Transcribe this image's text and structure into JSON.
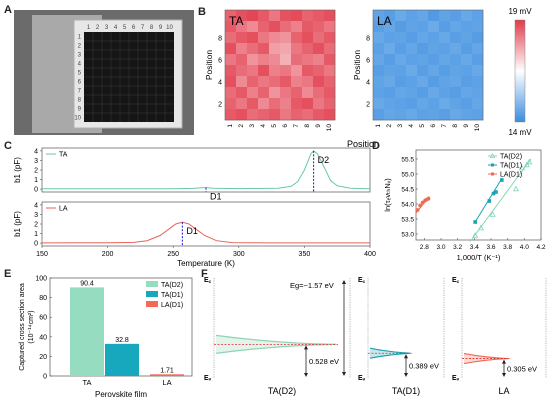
{
  "panels": {
    "A": {
      "label": "A",
      "grid_numbers": [
        "1",
        "2",
        "3",
        "4",
        "5",
        "6",
        "7",
        "8",
        "9",
        "10"
      ]
    },
    "B": {
      "label": "B",
      "colorbar": {
        "max_label": "19 mV",
        "min_label": "14 mV",
        "high_color": "#e03a4a",
        "low_color": "#3a8de0"
      },
      "maps": [
        {
          "name": "TA",
          "xlabel": "Position",
          "ylabel": "Position",
          "xticks": [
            "1",
            "2",
            "3",
            "4",
            "5",
            "6",
            "7",
            "8",
            "9",
            "10"
          ],
          "yticks": [
            "2",
            "4",
            "6",
            "8"
          ],
          "values": [
            [
              0.8,
              0.9,
              0.95,
              0.85,
              0.7,
              0.88,
              0.92,
              0.8,
              0.85,
              0.9
            ],
            [
              0.85,
              0.7,
              0.6,
              0.8,
              0.9,
              0.75,
              0.65,
              0.85,
              0.8,
              0.7
            ],
            [
              0.75,
              0.85,
              0.9,
              0.7,
              0.6,
              0.55,
              0.8,
              0.9,
              0.75,
              0.85
            ],
            [
              0.9,
              0.65,
              0.75,
              0.85,
              0.5,
              0.45,
              0.7,
              0.8,
              0.9,
              0.75
            ],
            [
              0.7,
              0.8,
              0.55,
              0.65,
              0.6,
              0.4,
              0.75,
              0.7,
              0.65,
              0.85
            ],
            [
              0.85,
              0.75,
              0.7,
              0.9,
              0.65,
              0.7,
              0.55,
              0.85,
              0.8,
              0.7
            ],
            [
              0.9,
              0.6,
              0.8,
              0.7,
              0.75,
              0.85,
              0.65,
              0.7,
              0.9,
              0.8
            ],
            [
              0.75,
              0.85,
              0.65,
              0.8,
              0.55,
              0.7,
              0.8,
              0.6,
              0.75,
              0.85
            ],
            [
              0.8,
              0.7,
              0.85,
              0.6,
              0.75,
              0.65,
              0.85,
              0.9,
              0.7,
              0.8
            ],
            [
              0.85,
              0.9,
              0.75,
              0.8,
              0.85,
              0.7,
              0.8,
              0.75,
              0.85,
              0.9
            ]
          ]
        },
        {
          "name": "LA",
          "xlabel": "Position",
          "ylabel": "Position",
          "xticks": [
            "1",
            "2",
            "3",
            "4",
            "5",
            "6",
            "7",
            "8",
            "9",
            "10"
          ],
          "yticks": [
            "2",
            "4",
            "6",
            "8"
          ],
          "values": [
            [
              0.2,
              0.15,
              0.25,
              0.18,
              0.22,
              0.12,
              0.2,
              0.16,
              0.24,
              0.18
            ],
            [
              0.16,
              0.22,
              0.14,
              0.2,
              0.18,
              0.26,
              0.15,
              0.22,
              0.18,
              0.2
            ],
            [
              0.24,
              0.18,
              0.2,
              0.15,
              0.22,
              0.18,
              0.24,
              0.16,
              0.2,
              0.14
            ],
            [
              0.18,
              0.25,
              0.16,
              0.22,
              0.14,
              0.2,
              0.18,
              0.24,
              0.15,
              0.22
            ],
            [
              0.22,
              0.15,
              0.24,
              0.18,
              0.2,
              0.16,
              0.22,
              0.18,
              0.24,
              0.16
            ],
            [
              0.15,
              0.2,
              0.18,
              0.25,
              0.16,
              0.22,
              0.15,
              0.2,
              0.18,
              0.24
            ],
            [
              0.2,
              0.24,
              0.15,
              0.18,
              0.24,
              0.14,
              0.2,
              0.22,
              0.16,
              0.18
            ],
            [
              0.18,
              0.16,
              0.22,
              0.2,
              0.15,
              0.24,
              0.18,
              0.15,
              0.22,
              0.2
            ],
            [
              0.24,
              0.2,
              0.18,
              0.16,
              0.22,
              0.18,
              0.25,
              0.2,
              0.16,
              0.22
            ],
            [
              0.16,
              0.22,
              0.2,
              0.24,
              0.18,
              0.2,
              0.16,
              0.24,
              0.2,
              0.18
            ]
          ]
        }
      ]
    },
    "C": {
      "label": "C",
      "xlabel": "Temperature (K)",
      "xticks": [
        "150",
        "200",
        "250",
        "300",
        "350",
        "400"
      ],
      "ylabel": "b1 (pF)",
      "traces": [
        {
          "name": "TA",
          "color": "#6cc9a5",
          "xlim": [
            150,
            400
          ],
          "ylim": [
            -0.3,
            4.3
          ],
          "yticks": [
            "0",
            "1",
            "2",
            "3",
            "4"
          ],
          "markers": [
            {
              "label": "D1",
              "x": 275,
              "amp": 0.15
            },
            {
              "label": "D2",
              "x": 357,
              "amp": 4.0
            }
          ],
          "points": [
            [
              150,
              0.05
            ],
            [
              200,
              0.05
            ],
            [
              250,
              0.05
            ],
            [
              265,
              0.08
            ],
            [
              272,
              0.15
            ],
            [
              275,
              0.17
            ],
            [
              280,
              0.1
            ],
            [
              300,
              0.06
            ],
            [
              330,
              0.1
            ],
            [
              340,
              0.3
            ],
            [
              345,
              0.8
            ],
            [
              350,
              2.0
            ],
            [
              355,
              3.7
            ],
            [
              357,
              4.0
            ],
            [
              360,
              3.7
            ],
            [
              365,
              2.3
            ],
            [
              370,
              0.9
            ],
            [
              375,
              0.35
            ],
            [
              385,
              0.1
            ],
            [
              400,
              0.05
            ]
          ]
        },
        {
          "name": "LA",
          "color": "#e8635a",
          "xlim": [
            150,
            400
          ],
          "ylim": [
            -0.3,
            4.3
          ],
          "yticks": [
            "0",
            "1",
            "2",
            "3",
            "4"
          ],
          "markers": [
            {
              "label": "D1",
              "x": 257,
              "amp": 2.2
            }
          ],
          "points": [
            [
              150,
              0.02
            ],
            [
              200,
              0.03
            ],
            [
              220,
              0.08
            ],
            [
              230,
              0.25
            ],
            [
              240,
              0.8
            ],
            [
              247,
              1.5
            ],
            [
              252,
              2.0
            ],
            [
              257,
              2.2
            ],
            [
              262,
              2.0
            ],
            [
              267,
              1.5
            ],
            [
              274,
              0.8
            ],
            [
              283,
              0.25
            ],
            [
              295,
              0.06
            ],
            [
              320,
              0.02
            ],
            [
              400,
              0.02
            ]
          ]
        }
      ]
    },
    "D": {
      "label": "D",
      "xlabel": "1,000/T (K⁻¹)",
      "ylabel": "ln(τₑvₜₕNᵥ)",
      "xlim": [
        2.7,
        4.2
      ],
      "ylim": [
        52.8,
        55.8
      ],
      "xticks": [
        "2.8",
        "3.0",
        "3.2",
        "3.4",
        "3.6",
        "3.8",
        "4.0",
        "4.2"
      ],
      "yticks": [
        "53.0",
        "53.5",
        "54.0",
        "54.5",
        "55.0",
        "55.5"
      ],
      "series": [
        {
          "name": "TA(D2)",
          "color": "#82d6b6",
          "marker": "triangle",
          "points": [
            [
              3.41,
              52.95
            ],
            [
              3.48,
              53.2
            ],
            [
              3.62,
              53.65
            ],
            [
              3.9,
              54.5
            ],
            [
              3.97,
              55.2
            ],
            [
              4.03,
              55.3
            ],
            [
              4.06,
              55.4
            ]
          ],
          "fit": [
            [
              3.35,
              52.75
            ],
            [
              4.08,
              55.5
            ]
          ]
        },
        {
          "name": "TA(D1)",
          "color": "#1aa3b4",
          "marker": "square",
          "points": [
            [
              3.41,
              53.4
            ],
            [
              3.58,
              54.1
            ],
            [
              3.63,
              54.35
            ],
            [
              3.66,
              54.4
            ],
            [
              3.73,
              54.8
            ]
          ],
          "fit": [
            [
              3.41,
              53.4
            ],
            [
              3.73,
              54.85
            ]
          ]
        },
        {
          "name": "LA(D1)",
          "color": "#ef6b54",
          "marker": "circle",
          "points": [
            [
              2.72,
              53.8
            ],
            [
              2.75,
              53.95
            ],
            [
              2.78,
              54.05
            ],
            [
              2.81,
              54.12
            ],
            [
              2.83,
              54.15
            ],
            [
              2.85,
              54.18
            ]
          ],
          "fit": [
            [
              2.7,
              53.7
            ],
            [
              2.86,
              54.25
            ]
          ]
        }
      ]
    },
    "E": {
      "label": "E",
      "chart_data": {
        "type": "bar",
        "categories": [
          "TA",
          "LA"
        ],
        "series": [
          {
            "name": "TA(D2)",
            "color": "#96dcc0",
            "values": [
              90.4,
              null
            ]
          },
          {
            "name": "TA(D1)",
            "color": "#17a8bd",
            "values": [
              32.8,
              null
            ]
          },
          {
            "name": "LA(D1)",
            "color": "#f06a55",
            "values": [
              null,
              1.71
            ]
          }
        ],
        "data_labels": [
          "90.4",
          "32.8",
          "1.71"
        ],
        "ylim": [
          0,
          100
        ],
        "yticks": [
          "0",
          "20",
          "40",
          "60",
          "80",
          "100"
        ],
        "ylabel_line1": "Captured cross section area",
        "ylabel_line2": "(10⁻¹⁴cm²)",
        "xlabel": "Perovskite film",
        "legend": "top-right"
      }
    },
    "F": {
      "label": "F",
      "ec_label": "E꜀",
      "ev_label": "Eᵥ",
      "diagrams": [
        {
          "name": "TA(D2)",
          "gap_label": "Eg=~1.57 eV",
          "depth_label": "0.528 eV",
          "depth": 0.528,
          "trap_color": "#8fd3b5"
        },
        {
          "name": "TA(D1)",
          "depth_label": "0.389 eV",
          "depth": 0.389,
          "trap_color": "#1aa3b4"
        },
        {
          "name": "LA",
          "depth_label": "0.305 eV",
          "depth": 0.305,
          "trap_color": "#ef6b54"
        }
      ]
    }
  }
}
